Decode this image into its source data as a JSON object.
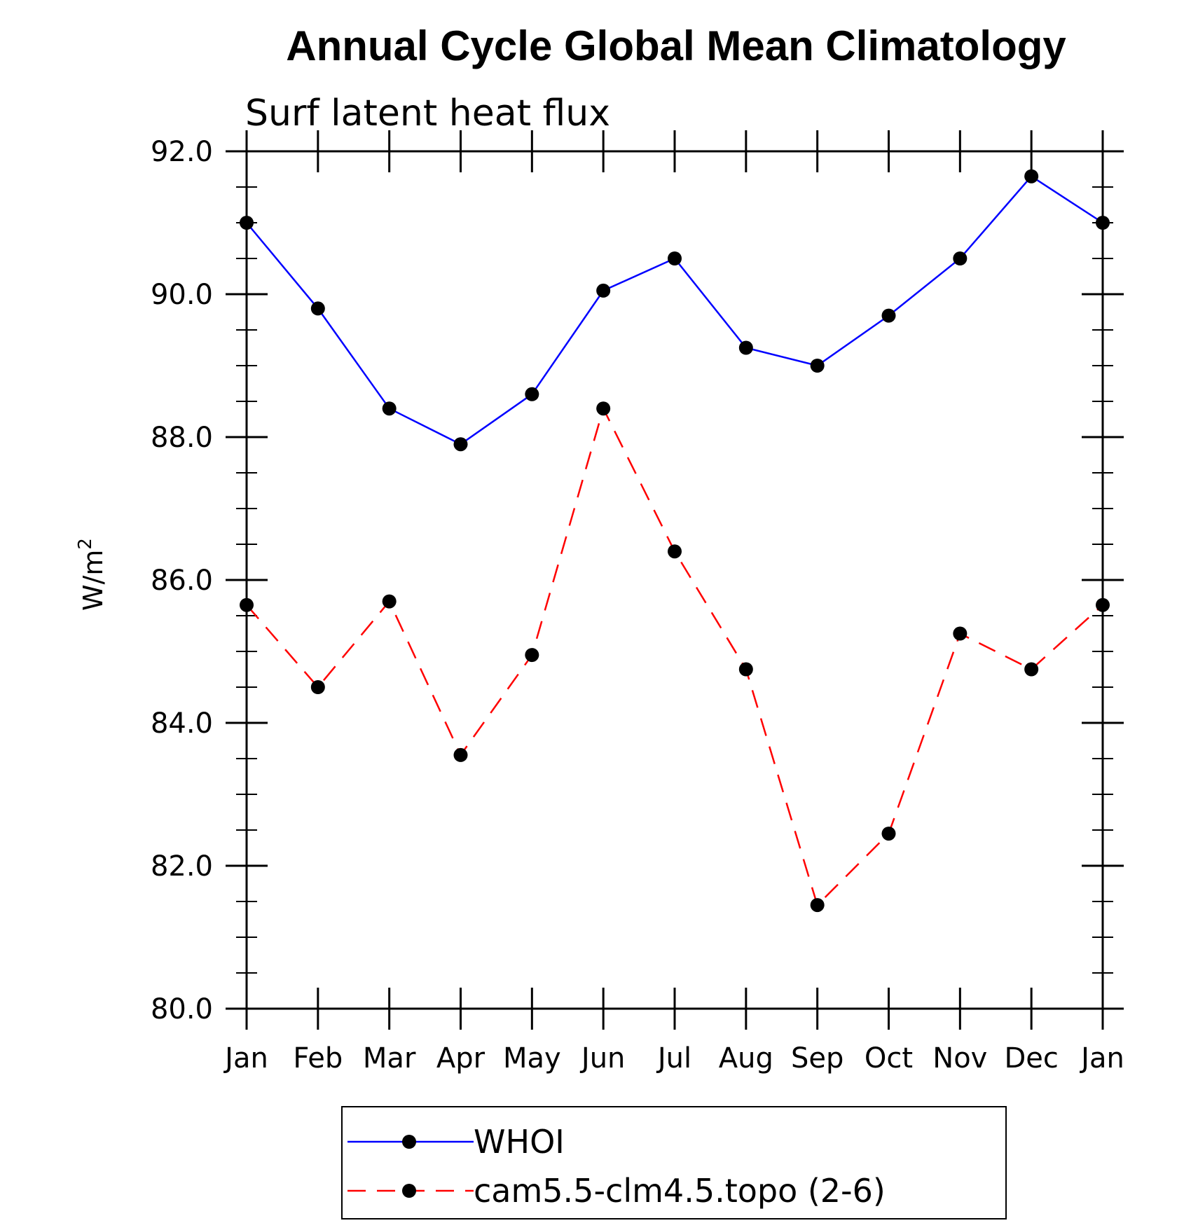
{
  "chart_data": {
    "type": "line",
    "title": "Annual Cycle Global Mean Climatology",
    "subtitle": "Surf latent heat flux",
    "ylabel": "W/m",
    "ylabel_superscript": "2",
    "xlabel": "",
    "categories": [
      "Jan",
      "Feb",
      "Mar",
      "Apr",
      "May",
      "Jun",
      "Jul",
      "Aug",
      "Sep",
      "Oct",
      "Nov",
      "Dec",
      "Jan"
    ],
    "ylim": [
      80.0,
      92.0
    ],
    "yticks": [
      "80.0",
      "82.0",
      "84.0",
      "86.0",
      "88.0",
      "90.0",
      "92.0"
    ],
    "ytick_values": [
      80,
      82,
      84,
      86,
      88,
      90,
      92
    ],
    "yminor_step": 0.5,
    "grid": false,
    "legend_position": "bottom",
    "series": [
      {
        "name": "WHOI",
        "color": "#0000ff",
        "dash": "solid",
        "marker": "filled-circle",
        "values": [
          91.0,
          89.8,
          88.4,
          87.9,
          88.6,
          90.05,
          90.5,
          89.25,
          89.0,
          89.7,
          90.5,
          91.65,
          91.0
        ]
      },
      {
        "name": "cam5.5-clm4.5.topo (2-6)",
        "color": "#ff0000",
        "dash": "dashed",
        "marker": "filled-circle",
        "values": [
          85.65,
          84.5,
          85.7,
          83.55,
          84.95,
          88.4,
          86.4,
          84.75,
          81.45,
          82.45,
          85.25,
          84.75,
          85.65
        ]
      }
    ]
  }
}
